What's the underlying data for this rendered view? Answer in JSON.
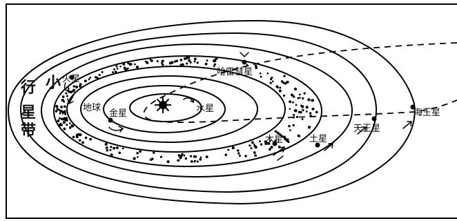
{
  "diagram": {
    "labels": {
      "mercury": "水星",
      "venus": "金星",
      "earth": "地球",
      "mars": "火星",
      "jupiter": "木星",
      "saturn": "土星",
      "uranus": "天王星",
      "neptune": "海王星",
      "comet": "哈雷彗星"
    },
    "asteroid_belt_chars": [
      "小",
      "行",
      "星",
      "带"
    ]
  }
}
